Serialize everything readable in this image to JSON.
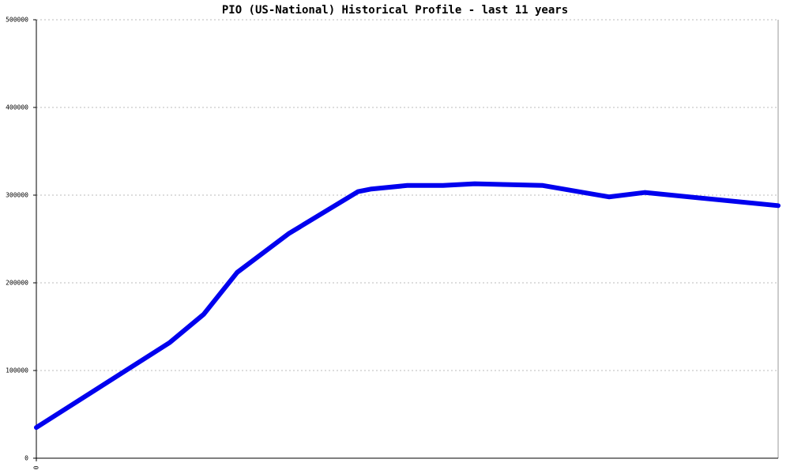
{
  "chart_data": {
    "type": "line",
    "title": "PIO (US-National) Historical Profile - last 11 years",
    "x": [
      0,
      1.98,
      2.48,
      2.98,
      3.74,
      4.77,
      4.97,
      5.5,
      6.03,
      6.5,
      6.97,
      7.51,
      8.49,
      9.02,
      11
    ],
    "series": [
      {
        "color": "#0000ee",
        "values": [
          35000,
          132000,
          164000,
          212000,
          256000,
          304000,
          307000,
          311000,
          311000,
          313000,
          312000,
          311000,
          298000,
          303000,
          288000
        ]
      }
    ],
    "xlim": [
      0,
      11
    ],
    "xticks": [
      0
    ],
    "ylim": [
      0,
      500000
    ],
    "yticks": [
      0,
      100000,
      200000,
      300000,
      400000,
      500000
    ],
    "grid": true
  }
}
